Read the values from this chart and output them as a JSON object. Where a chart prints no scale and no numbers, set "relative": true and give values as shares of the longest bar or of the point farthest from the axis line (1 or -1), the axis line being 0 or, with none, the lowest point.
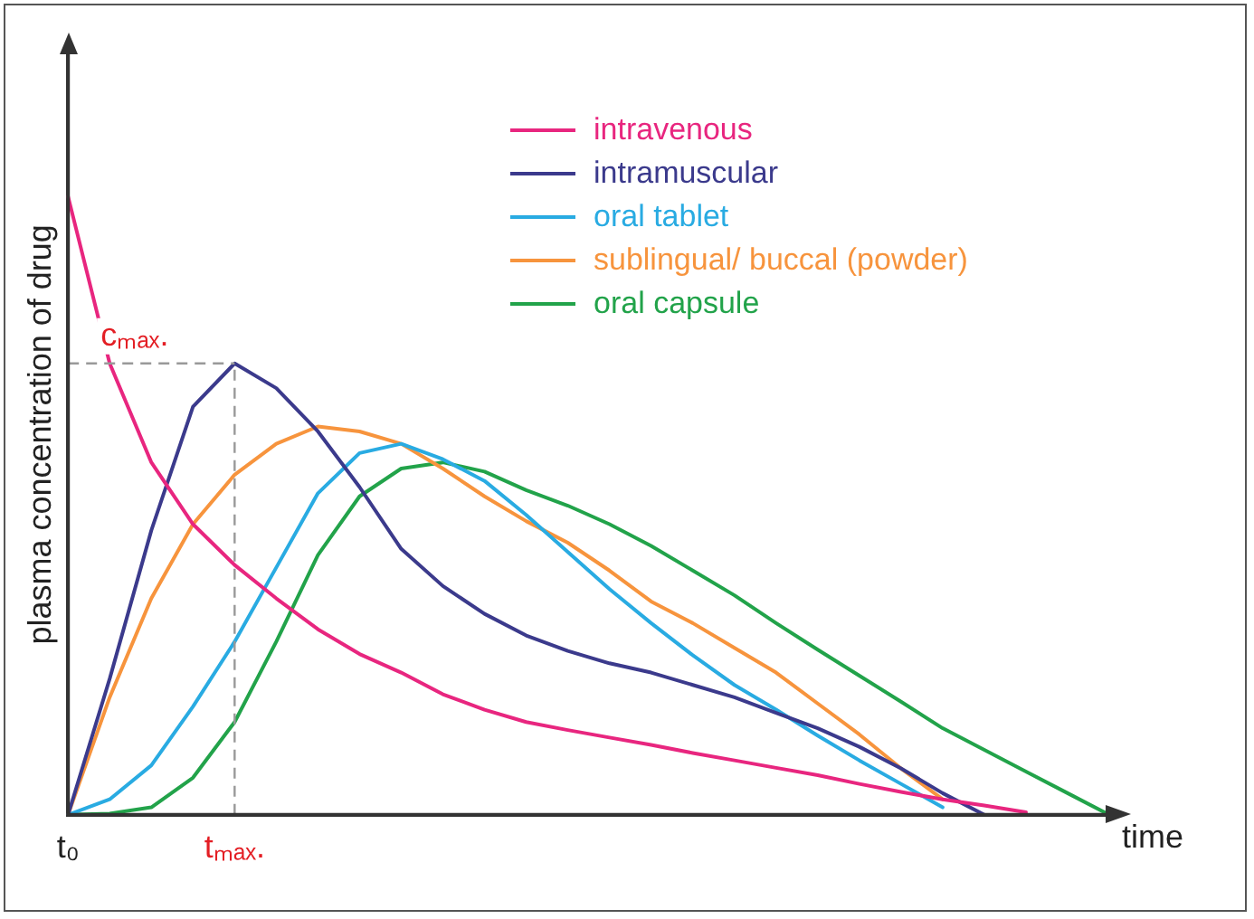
{
  "chart_data": {
    "type": "line",
    "ylabel": "plasma concentration of drug",
    "xlabel": "time",
    "relative": true,
    "categories": [
      "t₀",
      null,
      null,
      null,
      "tₘₐₓ.",
      null,
      null,
      null,
      null,
      null,
      null,
      null,
      null,
      null,
      null,
      null,
      null,
      null,
      null,
      null,
      null,
      null,
      null,
      null,
      null,
      null
    ],
    "grid": false,
    "legend": "top right",
    "marker": "none",
    "line_style": "solid",
    "ref_lines": [
      {
        "axis": "y",
        "value": 0.73,
        "label": "cₘₐₓ.",
        "color": "#999999",
        "line_style": "dashed"
      },
      {
        "axis": "x",
        "value": "tₘₐₓ.",
        "color": "#999999",
        "line_style": "dashed"
      }
    ],
    "series": [
      {
        "name": "intravenous",
        "color": "#e8267f",
        "values": [
          1,
          0.73,
          0.57,
          0.47,
          0.404,
          0.35,
          0.3,
          0.26,
          0.23,
          0.195,
          0.17,
          0.15,
          0.137,
          0.125,
          0.113,
          0.1,
          0.088,
          0.076,
          0.064,
          0.05,
          0.037,
          0.025,
          0.015,
          0.004,
          null,
          null
        ]
      },
      {
        "name": "intramuscular",
        "color": "#3b3a8c",
        "values": [
          0,
          0.22,
          0.46,
          0.66,
          0.73,
          0.69,
          0.62,
          0.53,
          0.43,
          0.37,
          0.325,
          0.29,
          0.265,
          0.245,
          0.23,
          0.21,
          0.19,
          0.165,
          0.14,
          0.11,
          0.075,
          0.035,
          0,
          null,
          null,
          null
        ]
      },
      {
        "name": "oral tablet",
        "color": "#29abe2",
        "values": [
          0,
          0.025,
          0.08,
          0.175,
          0.28,
          0.4,
          0.52,
          0.585,
          0.6,
          0.575,
          0.54,
          0.485,
          0.425,
          0.365,
          0.31,
          0.258,
          0.21,
          0.17,
          0.128,
          0.088,
          0.05,
          0.012,
          null,
          null,
          null,
          null
        ]
      },
      {
        "name": "sublingual/ buccal (powder)",
        "color": "#f7943d",
        "values": [
          0,
          0.19,
          0.35,
          0.47,
          0.55,
          0.6,
          0.628,
          0.62,
          0.6,
          0.56,
          0.515,
          0.475,
          0.44,
          0.395,
          0.345,
          0.31,
          0.27,
          0.23,
          0.18,
          0.13,
          0.075,
          0.025,
          null,
          null,
          null,
          null
        ]
      },
      {
        "name": "oral capsule",
        "color": "#22a34a",
        "values": [
          0,
          0.002,
          0.012,
          0.06,
          0.15,
          0.28,
          0.42,
          0.515,
          0.56,
          0.57,
          0.555,
          0.525,
          0.5,
          0.47,
          0.435,
          0.395,
          0.355,
          0.31,
          0.267,
          0.225,
          0.183,
          0.14,
          0.105,
          0.07,
          0.035,
          0
        ]
      }
    ]
  }
}
